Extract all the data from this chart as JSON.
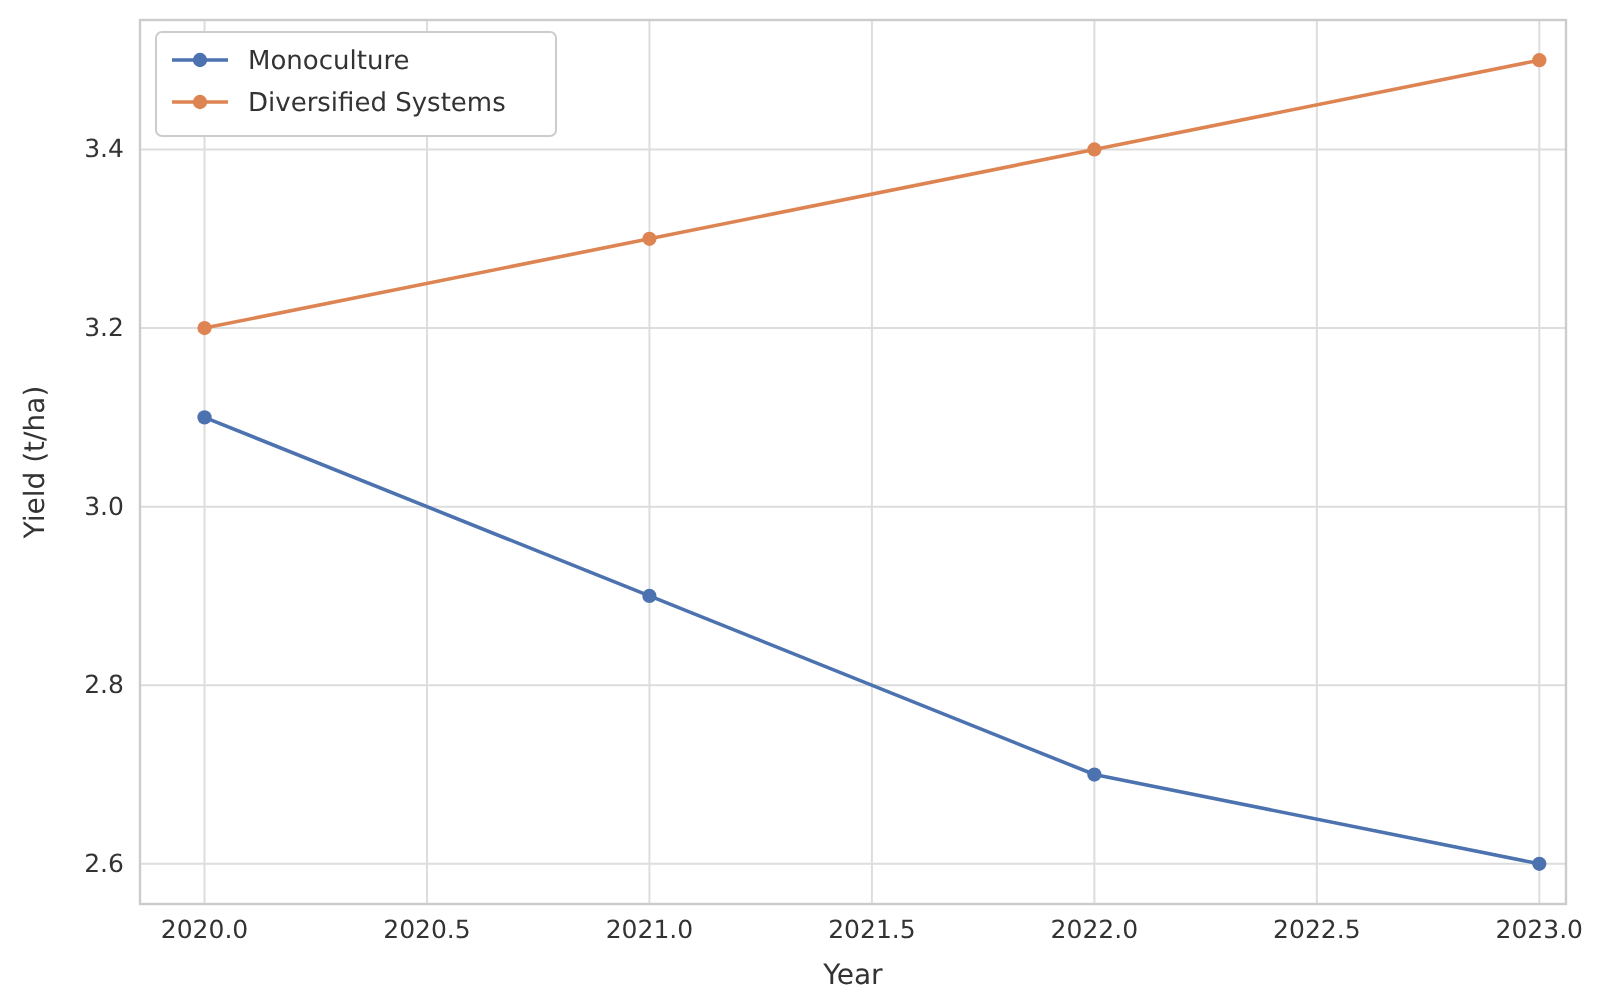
{
  "chart_data": {
    "type": "line",
    "xlabel": "Year",
    "ylabel": "Yield (t/ha)",
    "x": [
      2020,
      2021,
      2022,
      2023
    ],
    "series": [
      {
        "name": "Monoculture",
        "color": "#4c72b0",
        "values": [
          3.1,
          2.9,
          2.7,
          2.6
        ]
      },
      {
        "name": "Diversified Systems",
        "color": "#dd8452",
        "values": [
          3.2,
          3.3,
          3.4,
          3.5
        ]
      }
    ],
    "xlim": [
      2019.855,
      2023.06
    ],
    "ylim": [
      2.555,
      3.545
    ],
    "xticks": [
      {
        "value": 2020,
        "label": "2020.0"
      },
      {
        "value": 2020.5,
        "label": "2020.5"
      },
      {
        "value": 2021,
        "label": "2021.0"
      },
      {
        "value": 2021.5,
        "label": "2021.5"
      },
      {
        "value": 2022,
        "label": "2022.0"
      },
      {
        "value": 2022.5,
        "label": "2022.5"
      },
      {
        "value": 2023,
        "label": "2023.0"
      }
    ],
    "yticks": [
      2.6,
      2.8,
      {
        "value": 3,
        "label": "3.0"
      },
      3.2,
      3.4
    ],
    "grid": true,
    "legend": "top left",
    "marker": "circle",
    "line_style": "solid"
  }
}
